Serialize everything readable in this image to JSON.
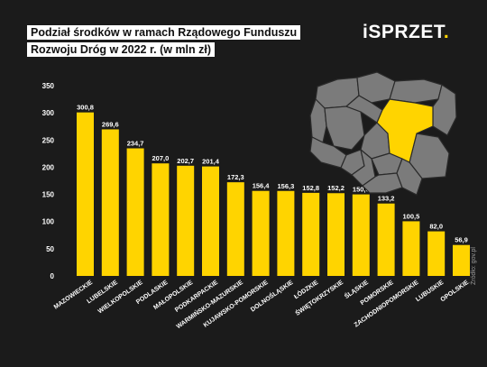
{
  "title": {
    "line1": "Podział środków w ramach Rządowego Funduszu",
    "line2": "Rozwoju Dróg w 2022 r. (w mln zł)"
  },
  "logo": {
    "prefix": "i",
    "main": "SPRZET",
    "suffix": "."
  },
  "source": "Źródło: gov.pl",
  "map": {
    "highlight_region": "MAZOWIECKIE"
  },
  "colors": {
    "background": "#1b1b1b",
    "bar": "#ffd400",
    "map_region": "#7b7b7b",
    "map_highlight": "#ffd400"
  },
  "chart_data": {
    "type": "bar",
    "title": "Podział środków w ramach Rządowego Funduszu Rozwoju Dróg w 2022 r. (w mln zł)",
    "categories": [
      "MAZOWIECKIE",
      "LUBELSKIE",
      "WIELKOPOLSKIE",
      "PODLASKIE",
      "MAŁOPOLSKIE",
      "PODKARPACKIE",
      "WARMIŃSKO-MAZURSKIE",
      "KUJAWSKO-POMORSKIE",
      "DOLNOŚLĄSKIE",
      "ŁÓDZKIE",
      "ŚWIĘTOKRZYSKIE",
      "ŚLĄSKIE",
      "POMORSKIE",
      "ZACHODNIOPOMORSKIE",
      "LUBUSKIE",
      "OPOLSKIE"
    ],
    "values": [
      300.8,
      269.6,
      234.7,
      207.0,
      202.7,
      201.4,
      172.3,
      156.4,
      156.3,
      152.8,
      152.2,
      150.0,
      133.2,
      100.5,
      82.0,
      56.9
    ],
    "value_labels": [
      "300,8",
      "269,6",
      "234,7",
      "207,0",
      "202,7",
      "201,4",
      "172,3",
      "156,4",
      "156,3",
      "152,8",
      "152,2",
      "150,0",
      "133,2",
      "100,5",
      "82,0",
      "56,9"
    ],
    "ylim": [
      0,
      350
    ],
    "yticks": [
      "0",
      "50",
      "100",
      "150",
      "200",
      "250",
      "300",
      "350"
    ],
    "grid": false,
    "legend": "none"
  }
}
